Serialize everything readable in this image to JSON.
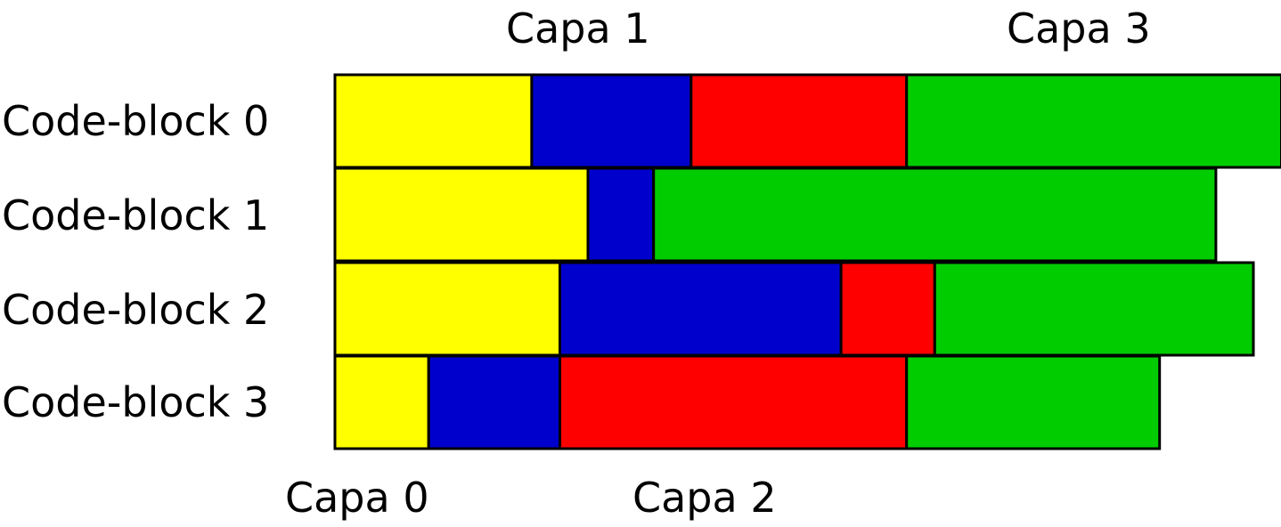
{
  "rows": [
    {
      "label": "Code-block 0",
      "segments": [
        {
          "layer": 0,
          "start": 0,
          "end": 21
        },
        {
          "layer": 1,
          "start": 21,
          "end": 38
        },
        {
          "layer": 2,
          "start": 38,
          "end": 61
        },
        {
          "layer": 3,
          "start": 61,
          "end": 101
        }
      ]
    },
    {
      "label": "Code-block 1",
      "segments": [
        {
          "layer": 0,
          "start": 0,
          "end": 27
        },
        {
          "layer": 1,
          "start": 27,
          "end": 34
        },
        {
          "layer": 3,
          "start": 34,
          "end": 94
        }
      ]
    },
    {
      "label": "Code-block 2",
      "segments": [
        {
          "layer": 0,
          "start": 0,
          "end": 24
        },
        {
          "layer": 1,
          "start": 24,
          "end": 54
        },
        {
          "layer": 2,
          "start": 54,
          "end": 64
        },
        {
          "layer": 3,
          "start": 64,
          "end": 98
        }
      ]
    },
    {
      "label": "Code-block 3",
      "segments": [
        {
          "layer": 0,
          "start": 0,
          "end": 10
        },
        {
          "layer": 1,
          "start": 10,
          "end": 24
        },
        {
          "layer": 2,
          "start": 24,
          "end": 61
        },
        {
          "layer": 3,
          "start": 61,
          "end": 88
        }
      ]
    }
  ],
  "layers": [
    {
      "name": "Capa 0",
      "color": "#ffff00",
      "label_position": "bottom"
    },
    {
      "name": "Capa 1",
      "color": "#0000cc",
      "label_position": "top"
    },
    {
      "name": "Capa 2",
      "color": "#ff0000",
      "label_position": "bottom"
    },
    {
      "name": "Capa 3",
      "color": "#00cc00",
      "label_position": "top"
    }
  ]
}
